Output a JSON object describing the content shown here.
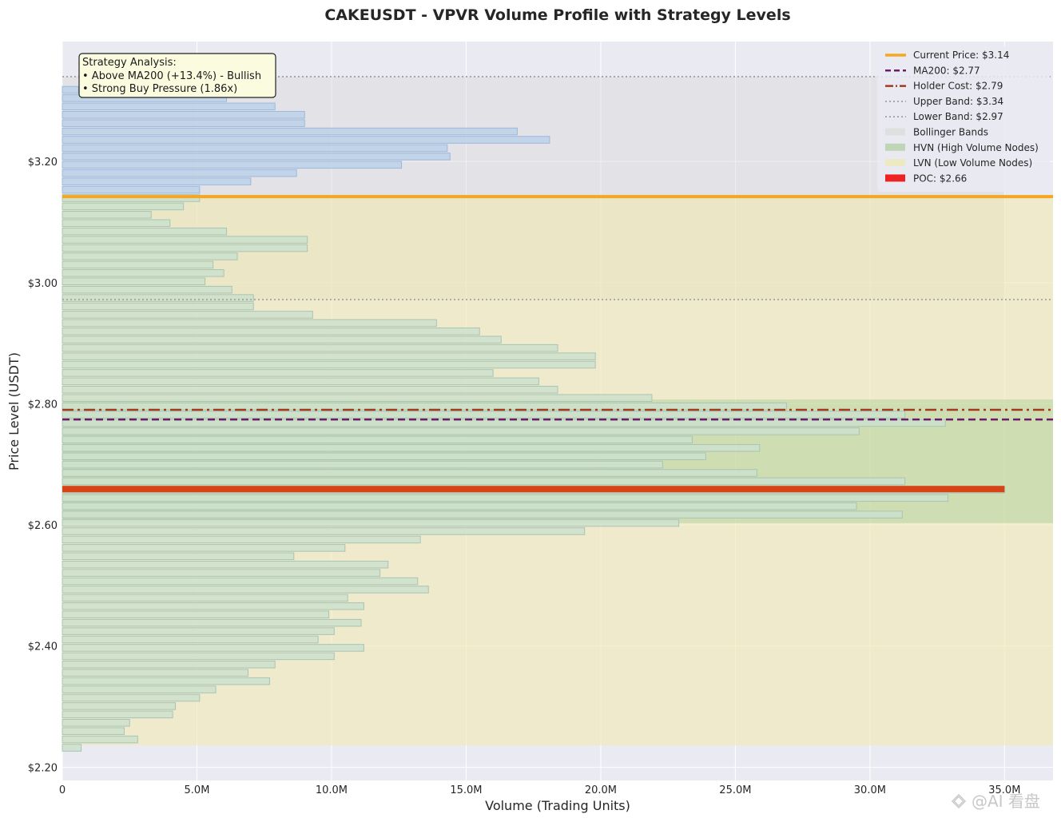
{
  "chart_data": {
    "type": "bar",
    "orientation": "horizontal",
    "title": "CAKEUSDT - VPVR Volume Profile with Strategy Levels",
    "xlabel": "Volume (Trading Units)",
    "ylabel": "Price Level (USDT)",
    "xlim": [
      0,
      36.8
    ],
    "ylim": [
      2.178,
      3.398
    ],
    "x_ticks": [
      0,
      5,
      10,
      15,
      20,
      25,
      30,
      35
    ],
    "x_tick_labels": [
      "0",
      "5.0M",
      "10.0M",
      "15.0M",
      "20.0M",
      "25.0M",
      "30.0M",
      "35.0M"
    ],
    "y_ticks": [
      2.2,
      2.4,
      2.6,
      2.8,
      3.0,
      3.2
    ],
    "y_tick_labels": [
      "$2.20",
      "$2.40",
      "$2.60",
      "$2.80",
      "$3.00",
      "$3.20"
    ],
    "grid": true,
    "legend_position": "top-right",
    "bin_start": 2.232,
    "bin_step": 0.01375,
    "volumes": [
      0.7,
      2.8,
      2.3,
      2.5,
      4.1,
      4.2,
      5.1,
      5.7,
      7.7,
      6.9,
      7.9,
      10.1,
      11.2,
      9.5,
      10.1,
      11.1,
      9.9,
      11.2,
      10.6,
      13.6,
      13.2,
      11.8,
      12.1,
      8.6,
      10.5,
      13.3,
      19.4,
      22.9,
      31.2,
      29.5,
      32.9,
      35.0,
      31.3,
      25.8,
      22.3,
      23.9,
      25.9,
      23.4,
      29.6,
      32.8,
      31.3,
      26.9,
      21.9,
      18.4,
      17.7,
      16.0,
      19.8,
      19.8,
      18.4,
      16.3,
      15.5,
      13.9,
      9.3,
      7.1,
      7.1,
      6.3,
      5.3,
      6.0,
      5.6,
      6.5,
      9.1,
      9.1,
      6.1,
      4.0,
      3.3,
      4.5,
      5.1,
      5.1,
      7.0,
      8.7,
      12.6,
      14.4,
      14.3,
      18.1,
      16.9,
      9.0,
      9.0,
      7.9,
      6.1,
      0.6
    ],
    "levels": {
      "current_price": 3.142,
      "ma200": 2.774,
      "holder_cost": 2.79,
      "upper_band": 3.34,
      "lower_band": 2.972,
      "poc": 2.659
    },
    "regions": {
      "bollinger": [
        2.972,
        3.34
      ],
      "hvn": [
        2.603,
        2.807
      ],
      "lvn": [
        2.236,
        3.142
      ]
    },
    "legend": [
      {
        "label": "Current Price: $3.14",
        "style": "solid-thick",
        "color": "#f5a623"
      },
      {
        "label": "MA200: $2.77",
        "style": "dashed",
        "color": "#6a1b6a"
      },
      {
        "label": "Holder Cost: $2.79",
        "style": "dashdot",
        "color": "#a33a1e"
      },
      {
        "label": "Upper Band: $3.34",
        "style": "dotted",
        "color": "#999999"
      },
      {
        "label": "Lower Band: $2.97",
        "style": "dotted",
        "color": "#999999"
      },
      {
        "label": "Bollinger Bands",
        "style": "patch",
        "color": "#dcdcdc"
      },
      {
        "label": "HVN (High Volume Nodes)",
        "style": "patch",
        "color": "#b5cfa8"
      },
      {
        "label": "LVN (Low Volume Nodes)",
        "style": "patch",
        "color": "#ede9b8"
      },
      {
        "label": "POC: $2.66",
        "style": "patch",
        "color": "#ee2222"
      }
    ],
    "annotation": {
      "lines": [
        "Strategy Analysis:",
        "• Above MA200 (+13.4%) - Bullish",
        "• Strong Buy Pressure (1.86x)"
      ]
    }
  },
  "watermark": "@AI 看盘",
  "colors": {
    "plot_bg": "#eaeaf2",
    "bar_above_fill": "#bcd1e6",
    "bar_above_edge": "#9db8dd",
    "bar_below_fill": "#cce0cc",
    "bar_below_edge": "#a9c4b4",
    "current_price": "#f5a623",
    "ma200": "#6a1b6a",
    "holder_cost": "#a33a1e",
    "band": "#999999",
    "poc": "#d84315"
  }
}
